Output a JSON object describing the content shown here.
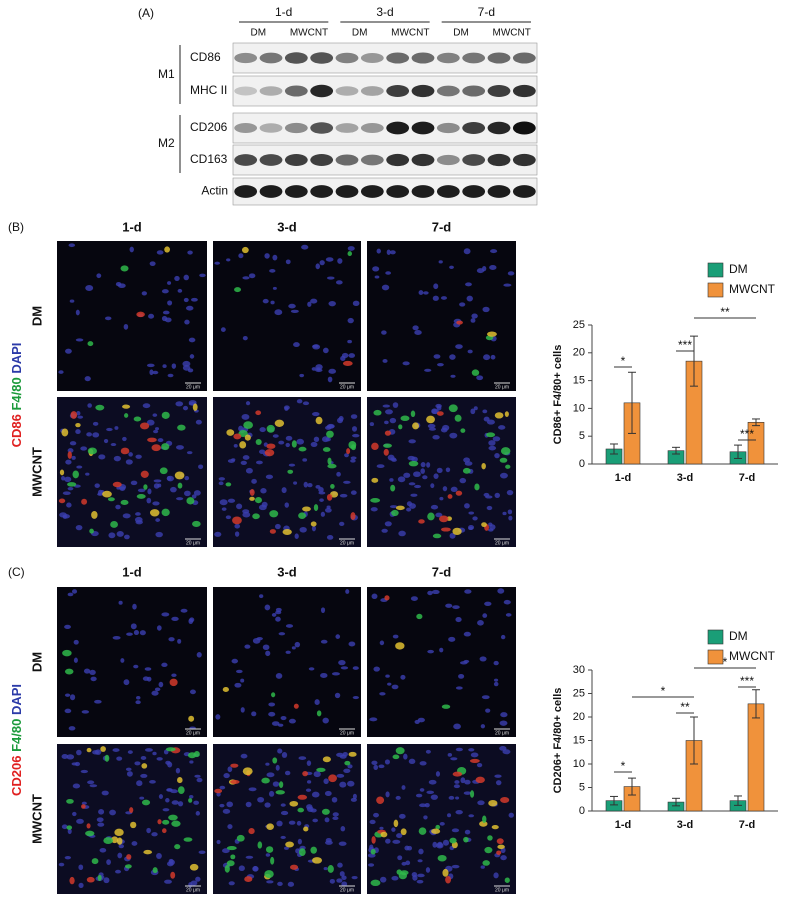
{
  "figure": {
    "a": {
      "label": "(A)",
      "groups": [
        "1-d",
        "3-d",
        "7-d"
      ],
      "lanes": [
        "DM",
        "MWCNT",
        "DM",
        "MWCNT",
        "DM",
        "MWCNT"
      ],
      "classes": [
        "M1",
        "M2"
      ],
      "proteins": [
        "CD86",
        "MHC II",
        "CD206",
        "CD163",
        "Actin"
      ]
    },
    "b": {
      "label": "(B)",
      "columns": [
        "1-d",
        "3-d",
        "7-d"
      ],
      "rows": [
        "DM",
        "MWCNT"
      ],
      "stain": [
        "CD86",
        "F4/80",
        "DAPI"
      ],
      "scale_bar": "20 μm"
    },
    "c": {
      "label": "(C)",
      "columns": [
        "1-d",
        "3-d",
        "7-d"
      ],
      "rows": [
        "DM",
        "MWCNT"
      ],
      "stain": [
        "CD206",
        "F4/80",
        "DAPI"
      ],
      "scale_bar": "20 μm"
    }
  },
  "chart_data": [
    {
      "type": "bar",
      "ylabel": "CD86+ F4/80+ cells",
      "categories": [
        "1-d",
        "3-d",
        "7-d"
      ],
      "series": [
        {
          "name": "DM",
          "color": "#1a9e77",
          "values": [
            2.7,
            2.4,
            2.2
          ],
          "errors": [
            0.9,
            0.6,
            1.2
          ]
        },
        {
          "name": "MWCNT",
          "color": "#f0923b",
          "values": [
            11.0,
            18.5,
            7.5
          ],
          "errors": [
            5.5,
            4.5,
            0.6
          ]
        }
      ],
      "ylim": [
        0,
        25
      ],
      "yticks": [
        0,
        5,
        10,
        15,
        20,
        25
      ],
      "legend": "top-right",
      "significance": [
        "*",
        "***",
        "**",
        "***"
      ]
    },
    {
      "type": "bar",
      "ylabel": "CD206+ F4/80+ cells",
      "categories": [
        "1-d",
        "3-d",
        "7-d"
      ],
      "series": [
        {
          "name": "DM",
          "color": "#1a9e77",
          "values": [
            2.2,
            1.9,
            2.2
          ],
          "errors": [
            0.9,
            0.8,
            1.0
          ]
        },
        {
          "name": "MWCNT",
          "color": "#f0923b",
          "values": [
            5.2,
            15.0,
            22.8
          ],
          "errors": [
            1.8,
            5.0,
            3.0
          ]
        }
      ],
      "ylim": [
        0,
        30
      ],
      "yticks": [
        0,
        5,
        10,
        15,
        20,
        25,
        30
      ],
      "legend": "top-right",
      "significance": [
        "*",
        "***",
        "*",
        "**",
        "*"
      ]
    }
  ]
}
